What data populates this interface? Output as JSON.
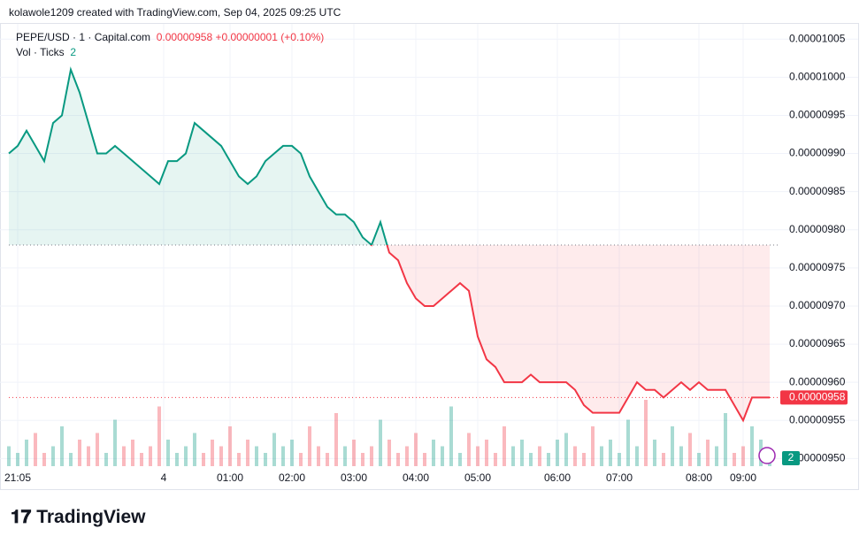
{
  "header": {
    "attribution": "kolawole1209 created with TradingView.com, Sep 04, 2025 09:25 UTC",
    "symbol": "PEPE/USD · 1 · Capital.com",
    "last": "0.00000958",
    "change": "+0.00000001",
    "change_pct": "(+0.10%)",
    "logo": "TradingView"
  },
  "chart_data": {
    "type": "baseline",
    "values": [
      9.9e-06,
      9.91e-06,
      9.93e-06,
      9.91e-06,
      9.89e-06,
      9.94e-06,
      9.95e-06,
      1.001e-05,
      9.98e-06,
      9.94e-06,
      9.9e-06,
      9.9e-06,
      9.91e-06,
      9.9e-06,
      9.89e-06,
      9.88e-06,
      9.87e-06,
      9.86e-06,
      9.89e-06,
      9.89e-06,
      9.9e-06,
      9.94e-06,
      9.93e-06,
      9.92e-06,
      9.91e-06,
      9.89e-06,
      9.87e-06,
      9.86e-06,
      9.87e-06,
      9.89e-06,
      9.9e-06,
      9.91e-06,
      9.91e-06,
      9.9e-06,
      9.87e-06,
      9.85e-06,
      9.83e-06,
      9.82e-06,
      9.82e-06,
      9.81e-06,
      9.79e-06,
      9.78e-06,
      9.81e-06,
      9.77e-06,
      9.76e-06,
      9.73e-06,
      9.71e-06,
      9.7e-06,
      9.7e-06,
      9.71e-06,
      9.72e-06,
      9.73e-06,
      9.72e-06,
      9.66e-06,
      9.63e-06,
      9.62e-06,
      9.6e-06,
      9.6e-06,
      9.6e-06,
      9.61e-06,
      9.6e-06,
      9.6e-06,
      9.6e-06,
      9.6e-06,
      9.59e-06,
      9.57e-06,
      9.56e-06,
      9.56e-06,
      9.56e-06,
      9.56e-06,
      9.58e-06,
      9.6e-06,
      9.59e-06,
      9.59e-06,
      9.58e-06,
      9.59e-06,
      9.6e-06,
      9.59e-06,
      9.6e-06,
      9.59e-06,
      9.59e-06,
      9.59e-06,
      9.57e-06,
      9.55e-06,
      9.58e-06,
      9.58e-06,
      9.58e-06
    ],
    "baseline": 9.78e-06,
    "up_color": "#089981",
    "down_color": "#f23645",
    "xlim": [
      0,
      87
    ],
    "xticks": [
      {
        "value": 1,
        "label": "21:05"
      },
      {
        "value": 17.5,
        "label": "4"
      },
      {
        "value": 25,
        "label": "01:00"
      },
      {
        "value": 32,
        "label": "02:00"
      },
      {
        "value": 39,
        "label": "03:00"
      },
      {
        "value": 46,
        "label": "04:00"
      },
      {
        "value": 53,
        "label": "05:00"
      },
      {
        "value": 62,
        "label": "06:00"
      },
      {
        "value": 69,
        "label": "07:00"
      },
      {
        "value": 78,
        "label": "08:00"
      },
      {
        "value": 83,
        "label": "09:00"
      }
    ],
    "ylim": [
      9.49e-06,
      1.007e-05
    ],
    "yticks": [
      {
        "value": 9.5e-06,
        "label": "0.00000950"
      },
      {
        "value": 9.55e-06,
        "label": "0.00000955"
      },
      {
        "value": 9.6e-06,
        "label": "0.00000960"
      },
      {
        "value": 9.65e-06,
        "label": "0.00000965"
      },
      {
        "value": 9.7e-06,
        "label": "0.00000970"
      },
      {
        "value": 9.75e-06,
        "label": "0.00000975"
      },
      {
        "value": 9.8e-06,
        "label": "0.00000980"
      },
      {
        "value": 9.85e-06,
        "label": "0.00000985"
      },
      {
        "value": 9.9e-06,
        "label": "0.00000990"
      },
      {
        "value": 9.95e-06,
        "label": "0.00000995"
      },
      {
        "value": 1e-05,
        "label": "0.00001000"
      },
      {
        "value": 1.005e-05,
        "label": "0.00001005"
      }
    ],
    "grid": true,
    "volume": {
      "name": "Vol · Ticks",
      "ylim": [
        0,
        12
      ],
      "values": [
        3,
        2,
        4,
        5,
        2,
        3,
        6,
        2,
        4,
        3,
        5,
        2,
        7,
        3,
        4,
        2,
        3,
        9,
        4,
        2,
        3,
        5,
        2,
        4,
        3,
        6,
        2,
        4,
        3,
        2,
        5,
        3,
        4,
        2,
        6,
        3,
        2,
        8,
        3,
        4,
        2,
        3,
        7,
        4,
        2,
        3,
        5,
        2,
        4,
        3,
        9,
        2,
        5,
        3,
        4,
        2,
        6,
        3,
        4,
        2,
        3,
        2,
        4,
        5,
        3,
        2,
        6,
        3,
        4,
        2,
        7,
        3,
        10,
        4,
        2,
        6,
        3,
        5,
        2,
        4,
        3,
        8,
        2,
        3,
        6,
        4,
        2
      ]
    }
  }
}
